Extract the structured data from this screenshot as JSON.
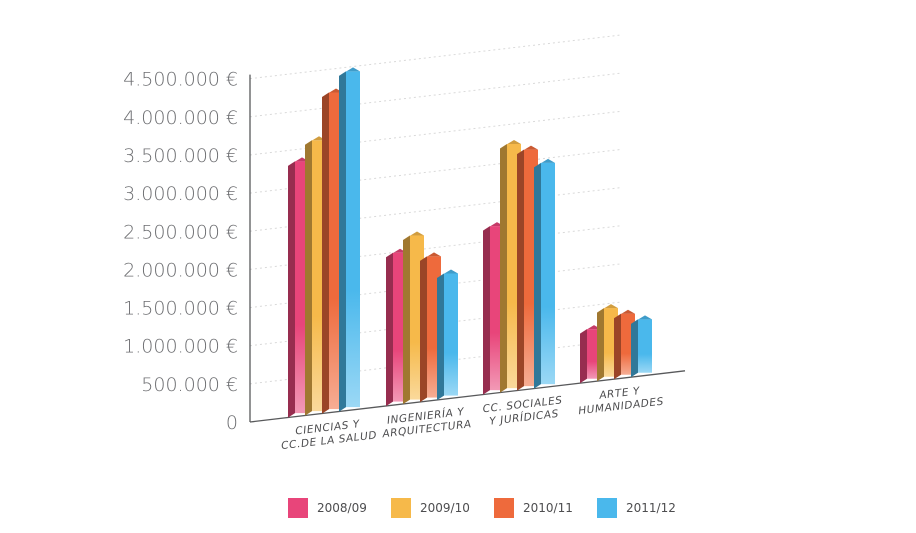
{
  "chart_data": {
    "type": "bar",
    "categories": [
      [
        "CIENCIAS Y",
        "CC.DE LA SALUD"
      ],
      [
        "INGENIERÍA Y",
        "ARQUITECTURA"
      ],
      [
        "CC. SOCIALES",
        "Y JURÍDICAS"
      ],
      [
        "ARTE Y",
        "HUMANIDADES"
      ]
    ],
    "y_ticks": [
      "0",
      "500.000 €",
      "1.000.000 €",
      "1.500.000 €",
      "2.000.000 €",
      "2.500.000 €",
      "3.000.000 €",
      "3.500.000 €",
      "4.000.000 €",
      "4.500.000 €"
    ],
    "ylim": [
      0,
      4500000
    ],
    "grid": true,
    "legend_position": "bottom",
    "series": [
      {
        "name": "2008/09",
        "color": "#e8457a",
        "values": [
          3300000,
          1950000,
          2150000,
          650000
        ]
      },
      {
        "name": "2009/10",
        "color": "#f6b94a",
        "values": [
          3550000,
          2150000,
          3200000,
          900000
        ]
      },
      {
        "name": "2010/11",
        "color": "#ee6a3c",
        "values": [
          4150000,
          1850000,
          3100000,
          800000
        ]
      },
      {
        "name": "2011/12",
        "color": "#4ab8ec",
        "values": [
          4400000,
          1600000,
          2900000,
          700000
        ]
      }
    ]
  }
}
